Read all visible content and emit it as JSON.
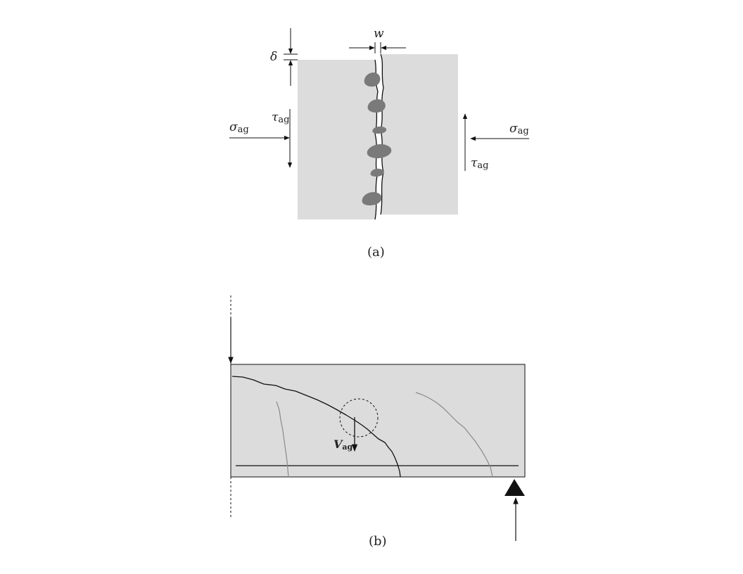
{
  "figure_a": {
    "caption": "(a)",
    "labels": {
      "crack_width": "w",
      "slip": "δ",
      "tau_left": "τ",
      "tau_right": "τ",
      "sigma_left": "σ",
      "sigma_right": "σ",
      "subscript": "ag"
    }
  },
  "figure_b": {
    "caption": "(b)",
    "labels": {
      "shear_force": "V",
      "shear_subscript": "ag"
    }
  },
  "colors": {
    "concrete": "#dcdcdc",
    "aggregate": "#7a7a7a",
    "stroke": "#111111",
    "minor_crack": "#8a8a8a"
  }
}
